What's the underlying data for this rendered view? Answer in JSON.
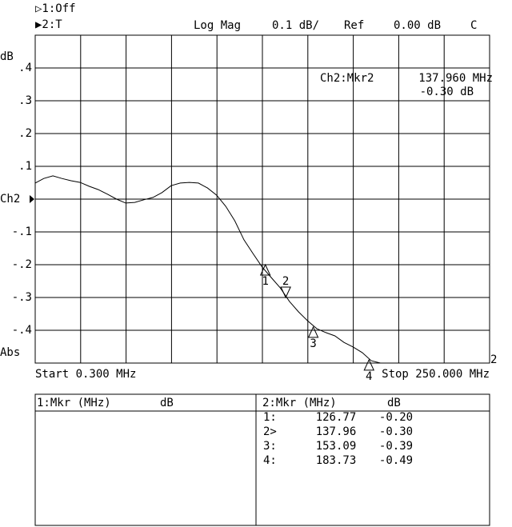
{
  "header": {
    "ch1_state": "▷1:Off",
    "ch2_state": "▶2:T",
    "format": "Log Mag",
    "scale": "0.1 dB/",
    "ref_label": "Ref",
    "ref_value": "0.00 dB",
    "cal_flag": "C"
  },
  "chart_data": {
    "type": "line",
    "y_unit": "dB",
    "y_mode": "Abs",
    "xlim": [
      0.3,
      250
    ],
    "ylim": [
      -0.5,
      0.5
    ],
    "yticks": [
      {
        "value": 0.4,
        "label": ".4"
      },
      {
        "value": 0.3,
        "label": ".3"
      },
      {
        "value": 0.2,
        "label": ".2"
      },
      {
        "value": 0.1,
        "label": ".1"
      },
      {
        "value": 0,
        "label": "Ch2"
      },
      {
        "value": -0.1,
        "label": "-.1"
      },
      {
        "value": -0.2,
        "label": "-.2"
      },
      {
        "value": -0.3,
        "label": "-.3"
      },
      {
        "value": -0.4,
        "label": "-.4"
      }
    ],
    "grid": true,
    "start_label": "Start 0.300 MHz",
    "stop_label": "Stop 250.000 MHz",
    "trace_label": "2",
    "readout": {
      "marker": "Ch2:Mkr2",
      "frequency": "137.960 MHz",
      "value": "-0.30 dB"
    },
    "series": [
      {
        "name": "2",
        "color": "#000000",
        "x": [
          0.3,
          5,
          10,
          15,
          20,
          25,
          30,
          35,
          40,
          45,
          50,
          55,
          60,
          65,
          70,
          75,
          80,
          85,
          90,
          95,
          100,
          105,
          110,
          115,
          120,
          125,
          130,
          135,
          140,
          145,
          150,
          155,
          160,
          165,
          170,
          175,
          180,
          185,
          190,
          200,
          210,
          220,
          230,
          240,
          250
        ],
        "values": [
          0.049,
          0.063,
          0.071,
          0.063,
          0.056,
          0.051,
          0.039,
          0.029,
          0.015,
          0.0,
          -0.012,
          -0.01,
          -0.002,
          0.005,
          0.02,
          0.041,
          0.049,
          0.051,
          0.049,
          0.034,
          0.012,
          -0.022,
          -0.066,
          -0.124,
          -0.166,
          -0.207,
          -0.239,
          -0.271,
          -0.312,
          -0.344,
          -0.371,
          -0.395,
          -0.407,
          -0.417,
          -0.437,
          -0.451,
          -0.468,
          -0.493,
          -0.5,
          -0.5,
          -0.5,
          -0.5,
          -0.5,
          -0.5,
          -0.5
        ]
      }
    ],
    "markers": [
      {
        "label": "1",
        "x": 126.77,
        "y": -0.2
      },
      {
        "label": "2",
        "x": 137.96,
        "y": -0.3
      },
      {
        "label": "3",
        "x": 153.09,
        "y": -0.39
      },
      {
        "label": "4",
        "x": 183.73,
        "y": -0.49
      }
    ]
  },
  "marker_table": {
    "left": {
      "title": "1:Mkr (MHz)",
      "unit": "dB"
    },
    "right": {
      "title": "2:Mkr (MHz)",
      "unit": "dB",
      "rows": [
        [
          "1:",
          "126.77",
          "-0.20"
        ],
        [
          "2>",
          "137.96",
          "-0.30"
        ],
        [
          "3:",
          "153.09",
          "-0.39"
        ],
        [
          "4:",
          "183.73",
          "-0.49"
        ]
      ]
    }
  }
}
